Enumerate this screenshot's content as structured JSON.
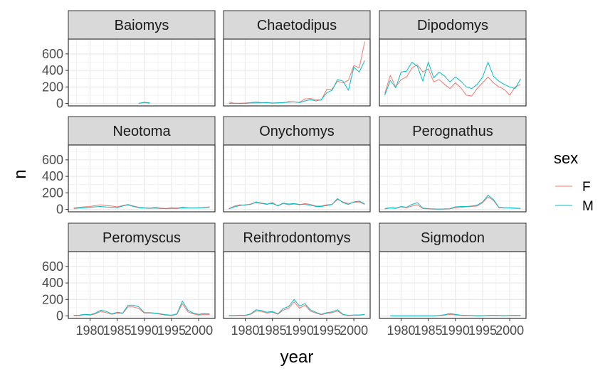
{
  "chart_data": {
    "type": "line",
    "xlabel": "year",
    "ylabel": "n",
    "xlim": [
      1976,
      2003
    ],
    "ylim": [
      -30,
      780
    ],
    "x_ticks": [
      1980,
      1985,
      1990,
      1995,
      2000
    ],
    "x_tick_labels": [
      "1980",
      "1985",
      "1990",
      "1995",
      "2000"
    ],
    "y_ticks": [
      0,
      200,
      400,
      600
    ],
    "y_tick_labels": [
      "0",
      "200",
      "400",
      "600"
    ],
    "grid": true,
    "legend": {
      "title": "sex",
      "position": "right",
      "entries": [
        {
          "label": "F",
          "color": "#F8766D"
        },
        {
          "label": "M",
          "color": "#00BFC4"
        }
      ]
    },
    "panels": [
      {
        "genus": "Baiomys",
        "series": [
          {
            "sex": "F",
            "years": [
              1989,
              1990,
              1991
            ],
            "values": [
              3,
              9,
              2
            ]
          },
          {
            "sex": "M",
            "years": [
              1989,
              1990,
              1991
            ],
            "values": [
              1,
              14,
              7
            ]
          }
        ]
      },
      {
        "genus": "Chaetodipus",
        "series": [
          {
            "sex": "F",
            "years": [
              1977,
              1978,
              1979,
              1980,
              1981,
              1982,
              1983,
              1984,
              1985,
              1986,
              1987,
              1988,
              1989,
              1990,
              1991,
              1992,
              1993,
              1994,
              1995,
              1996,
              1997,
              1998,
              1999,
              2000,
              2001,
              2002
            ],
            "values": [
              18,
              2,
              3,
              5,
              10,
              19,
              10,
              12,
              5,
              6,
              8,
              22,
              18,
              12,
              55,
              60,
              45,
              40,
              170,
              175,
              270,
              250,
              280,
              460,
              430,
              750
            ]
          },
          {
            "sex": "M",
            "years": [
              1977,
              1978,
              1979,
              1980,
              1981,
              1982,
              1983,
              1984,
              1985,
              1986,
              1987,
              1988,
              1989,
              1990,
              1991,
              1992,
              1993,
              1994,
              1995,
              1996,
              1997,
              1998,
              1999,
              2000,
              2001,
              2002
            ],
            "values": [
              1,
              1,
              0,
              1,
              5,
              7,
              7,
              9,
              4,
              8,
              10,
              15,
              20,
              10,
              30,
              45,
              30,
              45,
              130,
              160,
              290,
              270,
              160,
              440,
              380,
              520
            ]
          }
        ]
      },
      {
        "genus": "Dipodomys",
        "series": [
          {
            "sex": "F",
            "years": [
              1977,
              1978,
              1979,
              1980,
              1981,
              1982,
              1983,
              1984,
              1985,
              1986,
              1987,
              1988,
              1989,
              1990,
              1991,
              1992,
              1993,
              1994,
              1995,
              1996,
              1997,
              1998,
              1999,
              2000,
              2001,
              2002
            ],
            "values": [
              120,
              340,
              200,
              290,
              320,
              430,
              470,
              380,
              420,
              260,
              290,
              230,
              180,
              250,
              190,
              100,
              90,
              180,
              250,
              320,
              250,
              200,
              170,
              100,
              200,
              230
            ]
          },
          {
            "sex": "M",
            "years": [
              1977,
              1978,
              1979,
              1980,
              1981,
              1982,
              1983,
              1984,
              1985,
              1986,
              1987,
              1988,
              1989,
              1990,
              1991,
              1992,
              1993,
              1994,
              1995,
              1996,
              1997,
              1998,
              1999,
              2000,
              2001,
              2002
            ],
            "values": [
              100,
              280,
              190,
              380,
              390,
              500,
              450,
              270,
              500,
              310,
              380,
              330,
              260,
              320,
              270,
              200,
              180,
              230,
              320,
              500,
              330,
              270,
              230,
              200,
              180,
              300
            ]
          }
        ]
      },
      {
        "genus": "Neotoma",
        "series": [
          {
            "sex": "F",
            "years": [
              1977,
              1978,
              1979,
              1980,
              1981,
              1982,
              1983,
              1984,
              1985,
              1986,
              1987,
              1988,
              1989,
              1990,
              1991,
              1992,
              1993,
              1994,
              1995,
              1996,
              1997,
              1998,
              1999,
              2000,
              2001,
              2002
            ],
            "values": [
              15,
              25,
              30,
              35,
              45,
              55,
              45,
              40,
              30,
              45,
              60,
              40,
              25,
              20,
              15,
              25,
              15,
              10,
              20,
              15,
              25,
              20,
              18,
              20,
              25,
              30
            ]
          },
          {
            "sex": "M",
            "years": [
              1977,
              1978,
              1979,
              1980,
              1981,
              1982,
              1983,
              1984,
              1985,
              1986,
              1987,
              1988,
              1989,
              1990,
              1991,
              1992,
              1993,
              1994,
              1995,
              1996,
              1997,
              1998,
              1999,
              2000,
              2001,
              2002
            ],
            "values": [
              10,
              15,
              20,
              25,
              30,
              35,
              28,
              25,
              22,
              40,
              55,
              35,
              20,
              15,
              12,
              15,
              10,
              8,
              12,
              10,
              18,
              15,
              15,
              18,
              22,
              25
            ]
          }
        ]
      },
      {
        "genus": "Onychomys",
        "series": [
          {
            "sex": "F",
            "years": [
              1977,
              1978,
              1979,
              1980,
              1981,
              1982,
              1983,
              1984,
              1985,
              1986,
              1987,
              1988,
              1989,
              1990,
              1991,
              1992,
              1993,
              1994,
              1995,
              1996,
              1997,
              1998,
              1999,
              2000,
              2001,
              2002
            ],
            "values": [
              10,
              40,
              55,
              50,
              65,
              80,
              70,
              60,
              85,
              40,
              70,
              55,
              65,
              55,
              70,
              60,
              40,
              40,
              55,
              60,
              120,
              90,
              70,
              85,
              90,
              60
            ]
          },
          {
            "sex": "M",
            "years": [
              1977,
              1978,
              1979,
              1980,
              1981,
              1982,
              1983,
              1984,
              1985,
              1986,
              1987,
              1988,
              1989,
              1990,
              1991,
              1992,
              1993,
              1994,
              1995,
              1996,
              1997,
              1998,
              1999,
              2000,
              2001,
              2002
            ],
            "values": [
              5,
              30,
              45,
              55,
              60,
              90,
              75,
              65,
              70,
              45,
              75,
              65,
              70,
              60,
              60,
              50,
              35,
              35,
              45,
              60,
              130,
              80,
              60,
              90,
              100,
              65
            ]
          }
        ]
      },
      {
        "genus": "Perognathus",
        "series": [
          {
            "sex": "F",
            "years": [
              1977,
              1978,
              1979,
              1980,
              1981,
              1982,
              1983,
              1984,
              1985,
              1986,
              1987,
              1988,
              1989,
              1990,
              1991,
              1992,
              1993,
              1994,
              1995,
              1996,
              1997,
              1998,
              1999,
              2000,
              2001,
              2002
            ],
            "values": [
              5,
              15,
              10,
              30,
              20,
              40,
              55,
              10,
              5,
              3,
              2,
              3,
              5,
              20,
              25,
              30,
              35,
              40,
              80,
              150,
              110,
              20,
              15,
              15,
              12,
              10
            ]
          },
          {
            "sex": "M",
            "years": [
              1977,
              1978,
              1979,
              1980,
              1981,
              1982,
              1983,
              1984,
              1985,
              1986,
              1987,
              1988,
              1989,
              1990,
              1991,
              1992,
              1993,
              1994,
              1995,
              1996,
              1997,
              1998,
              1999,
              2000,
              2001,
              2002
            ],
            "values": [
              10,
              20,
              15,
              35,
              25,
              60,
              80,
              15,
              8,
              5,
              3,
              5,
              8,
              30,
              35,
              35,
              40,
              50,
              90,
              170,
              120,
              25,
              20,
              18,
              15,
              12
            ]
          }
        ]
      },
      {
        "genus": "Peromyscus",
        "series": [
          {
            "sex": "F",
            "years": [
              1977,
              1978,
              1979,
              1980,
              1981,
              1982,
              1983,
              1984,
              1985,
              1986,
              1987,
              1988,
              1989,
              1990,
              1991,
              1992,
              1993,
              1994,
              1995,
              1996,
              1997,
              1998,
              1999,
              2000,
              2001,
              2002
            ],
            "values": [
              5,
              5,
              15,
              10,
              25,
              55,
              40,
              20,
              35,
              30,
              110,
              110,
              90,
              35,
              35,
              30,
              20,
              10,
              5,
              20,
              150,
              50,
              25,
              10,
              20,
              15
            ]
          },
          {
            "sex": "M",
            "years": [
              1977,
              1978,
              1979,
              1980,
              1981,
              1982,
              1983,
              1984,
              1985,
              1986,
              1987,
              1988,
              1989,
              1990,
              1991,
              1992,
              1993,
              1994,
              1995,
              1996,
              1997,
              1998,
              1999,
              2000,
              2001,
              2002
            ],
            "values": [
              8,
              10,
              20,
              15,
              35,
              70,
              55,
              25,
              45,
              35,
              130,
              130,
              110,
              40,
              40,
              35,
              25,
              15,
              10,
              25,
              180,
              70,
              35,
              20,
              30,
              25
            ]
          }
        ]
      },
      {
        "genus": "Reithrodontomys",
        "series": [
          {
            "sex": "F",
            "years": [
              1977,
              1978,
              1979,
              1980,
              1981,
              1982,
              1983,
              1984,
              1985,
              1986,
              1987,
              1988,
              1989,
              1990,
              1991,
              1992,
              1993,
              1994,
              1995,
              1996,
              1997,
              1998,
              1999,
              2000,
              2001,
              2002
            ],
            "values": [
              3,
              3,
              8,
              5,
              20,
              60,
              55,
              35,
              45,
              20,
              70,
              95,
              170,
              95,
              130,
              60,
              35,
              15,
              30,
              40,
              60,
              15,
              5,
              10,
              10,
              15
            ]
          },
          {
            "sex": "M",
            "years": [
              1977,
              1978,
              1979,
              1980,
              1981,
              1982,
              1983,
              1984,
              1985,
              1986,
              1987,
              1988,
              1989,
              1990,
              1991,
              1992,
              1993,
              1994,
              1995,
              1996,
              1997,
              1998,
              1999,
              2000,
              2001,
              2002
            ],
            "values": [
              5,
              5,
              10,
              8,
              25,
              75,
              65,
              45,
              55,
              25,
              90,
              115,
              200,
              120,
              150,
              75,
              45,
              20,
              40,
              50,
              75,
              20,
              8,
              12,
              12,
              20
            ]
          }
        ]
      },
      {
        "genus": "Sigmodon",
        "series": [
          {
            "sex": "F",
            "years": [
              1978,
              1979,
              1980,
              1981,
              1982,
              1983,
              1984,
              1985,
              1986,
              1987,
              1988,
              1989,
              1990,
              1991,
              1992,
              1993,
              1994,
              1995,
              1996,
              1997,
              1998,
              1999,
              2000,
              2001,
              2002
            ],
            "values": [
              1,
              1,
              1,
              1,
              1,
              1,
              1,
              1,
              2,
              5,
              10,
              20,
              12,
              8,
              5,
              3,
              2,
              3,
              5,
              6,
              4,
              3,
              4,
              5,
              4
            ]
          },
          {
            "sex": "M",
            "years": [
              1978,
              1979,
              1980,
              1981,
              1982,
              1983,
              1984,
              1985,
              1986,
              1987,
              1988,
              1989,
              1990,
              1991,
              1992,
              1993,
              1994,
              1995,
              1996,
              1997,
              1998,
              1999,
              2000,
              2001,
              2002
            ],
            "values": [
              1,
              1,
              1,
              1,
              1,
              1,
              1,
              1,
              2,
              6,
              15,
              30,
              18,
              10,
              8,
              5,
              3,
              4,
              6,
              8,
              6,
              4,
              6,
              8,
              6
            ]
          }
        ]
      }
    ]
  }
}
